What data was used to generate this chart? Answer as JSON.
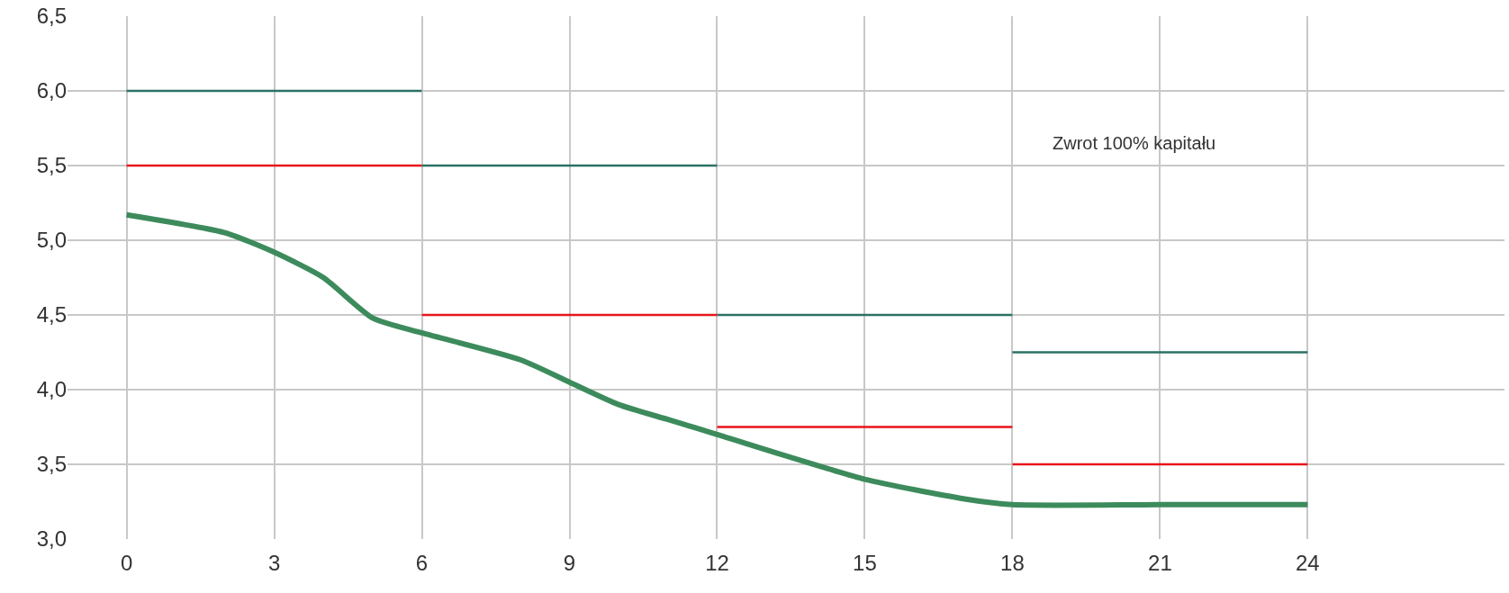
{
  "chart_data": {
    "type": "line",
    "xlim": [
      -1.2,
      28
    ],
    "xticks": [
      0,
      3,
      6,
      9,
      12,
      15,
      18,
      21,
      24
    ],
    "ylim": [
      3.0,
      6.5
    ],
    "yticks": [
      {
        "value": 3.0,
        "label": "3,0"
      },
      {
        "value": 3.5,
        "label": "3,5"
      },
      {
        "value": 4.0,
        "label": "4,0"
      },
      {
        "value": 4.5,
        "label": "4,5"
      },
      {
        "value": 5.0,
        "label": "5,0"
      },
      {
        "value": 5.5,
        "label": "5,5"
      },
      {
        "value": 6.0,
        "label": "6,0"
      },
      {
        "value": 6.5,
        "label": "6,5"
      }
    ],
    "grid": true,
    "marker": "none",
    "line_style": "solid",
    "annotations": [
      "Zwrot 100% kapitału"
    ],
    "series": [
      {
        "color": "#2a7265",
        "x": [
          0,
          6
        ],
        "values": [
          6.0,
          6.0
        ]
      },
      {
        "color": "#2a7265",
        "x": [
          6,
          12
        ],
        "values": [
          5.5,
          5.5
        ]
      },
      {
        "color": "#2a7265",
        "x": [
          12,
          18
        ],
        "values": [
          4.5,
          4.5
        ]
      },
      {
        "color": "#2a7265",
        "x": [
          18,
          24
        ],
        "values": [
          4.25,
          4.25
        ]
      },
      {
        "color": "#e8141b",
        "x": [
          0,
          6
        ],
        "values": [
          5.5,
          5.5
        ]
      },
      {
        "color": "#e8141b",
        "x": [
          6,
          12
        ],
        "values": [
          4.5,
          4.5
        ]
      },
      {
        "color": "#e8141b",
        "x": [
          12,
          18
        ],
        "values": [
          3.75,
          3.75
        ]
      },
      {
        "color": "#e8141b",
        "x": [
          18,
          24
        ],
        "values": [
          3.5,
          3.5
        ]
      },
      {
        "color": "#3d8b5c",
        "x": [
          0,
          2,
          3,
          4,
          5,
          6,
          8,
          9,
          10,
          11,
          12,
          15,
          17,
          18,
          21,
          24
        ],
        "values": [
          5.17,
          5.05,
          4.92,
          4.75,
          4.48,
          4.38,
          4.2,
          4.05,
          3.9,
          3.8,
          3.7,
          3.4,
          3.27,
          3.23,
          3.23,
          3.23
        ]
      }
    ]
  }
}
